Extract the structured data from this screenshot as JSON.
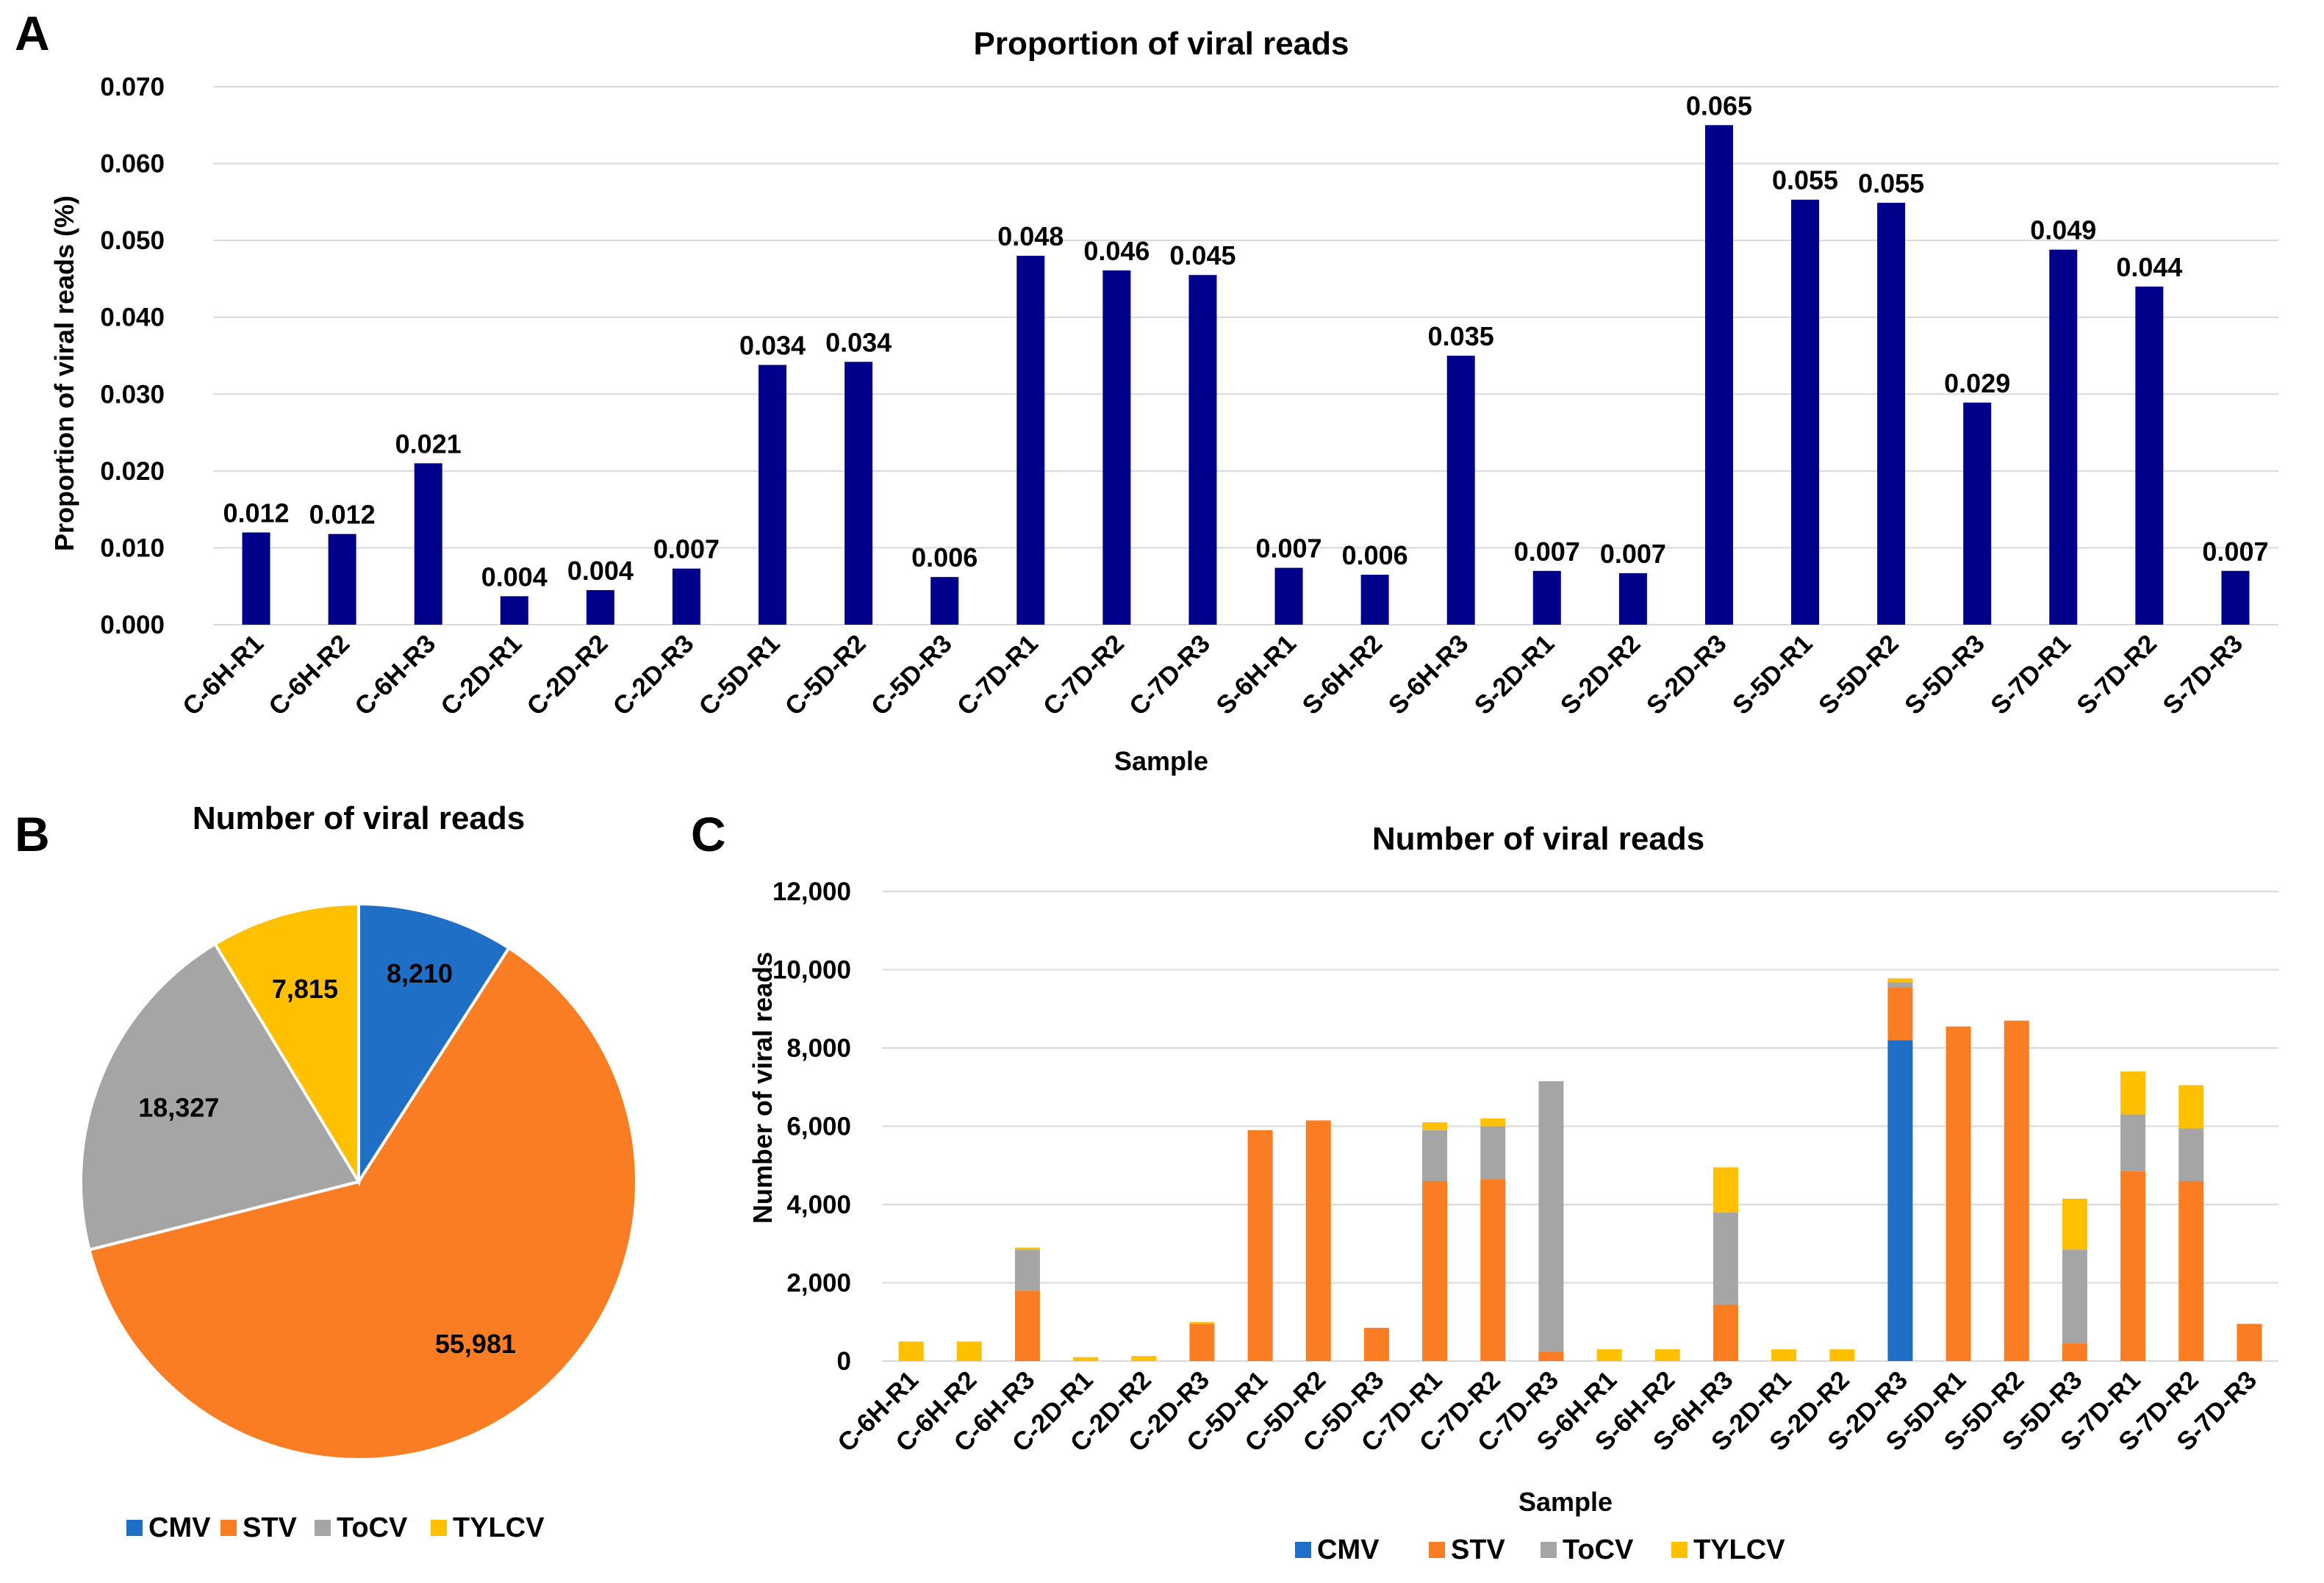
{
  "panel_letters": {
    "a": "A",
    "b": "B",
    "c": "C"
  },
  "colors": {
    "bar_blue": "#00008b",
    "CMV": "#1f6fc6",
    "STV": "#fb7d23",
    "ToCV": "#a5a5a5",
    "TYLCV": "#ffc000"
  },
  "chart_data": [
    {
      "id": "A",
      "type": "bar",
      "title": "Proportion of viral reads",
      "xlabel": "Sample",
      "ylabel": "Proportion of viral reads (%)",
      "ylim": [
        0,
        0.07
      ],
      "yticks": [
        "0.000",
        "0.010",
        "0.020",
        "0.030",
        "0.040",
        "0.050",
        "0.060",
        "0.070"
      ],
      "ytick_values": [
        0,
        0.01,
        0.02,
        0.03,
        0.04,
        0.05,
        0.06,
        0.07
      ],
      "grid": true,
      "categories": [
        "C-6H-R1",
        "C-6H-R2",
        "C-6H-R3",
        "C-2D-R1",
        "C-2D-R2",
        "C-2D-R3",
        "C-5D-R1",
        "C-5D-R2",
        "C-5D-R3",
        "C-7D-R1",
        "C-7D-R2",
        "C-7D-R3",
        "S-6H-R1",
        "S-6H-R2",
        "S-6H-R3",
        "S-2D-R1",
        "S-2D-R2",
        "S-2D-R3",
        "S-5D-R1",
        "S-5D-R2",
        "S-5D-R3",
        "S-7D-R1",
        "S-7D-R2",
        "S-7D-R3"
      ],
      "values": [
        0.012,
        0.0118,
        0.021,
        0.0037,
        0.0045,
        0.0073,
        0.0338,
        0.0342,
        0.0062,
        0.048,
        0.0461,
        0.0455,
        0.0074,
        0.0065,
        0.035,
        0.007,
        0.0067,
        0.065,
        0.0553,
        0.0549,
        0.0289,
        0.0488,
        0.044,
        0.007
      ],
      "labels": [
        "0.012",
        "0.012",
        "0.021",
        "0.004",
        "0.004",
        "0.007",
        "0.034",
        "0.034",
        "0.006",
        "0.048",
        "0.046",
        "0.045",
        "0.007",
        "0.006",
        "0.035",
        "0.007",
        "0.007",
        "0.065",
        "0.055",
        "0.055",
        "0.029",
        "0.049",
        "0.044",
        "0.007"
      ]
    },
    {
      "id": "B",
      "type": "pie",
      "title": "Number of viral reads",
      "legend": "bottom",
      "slices": [
        {
          "name": "CMV",
          "value": 8210,
          "label": "8,210"
        },
        {
          "name": "STV",
          "value": 55981,
          "label": "55,981"
        },
        {
          "name": "ToCV",
          "value": 18327,
          "label": "18,327"
        },
        {
          "name": "TYLCV",
          "value": 7815,
          "label": "7,815"
        }
      ]
    },
    {
      "id": "C",
      "type": "bar",
      "stacked": true,
      "title": "Number of viral reads",
      "xlabel": "Sample",
      "ylabel": "Number of viral reads",
      "ylim": [
        0,
        12000
      ],
      "yticks": [
        "0",
        "2,000",
        "4,000",
        "6,000",
        "8,000",
        "10,000",
        "12,000"
      ],
      "ytick_values": [
        0,
        2000,
        4000,
        6000,
        8000,
        10000,
        12000
      ],
      "grid": true,
      "legend": "bottom",
      "categories": [
        "C-6H-R1",
        "C-6H-R2",
        "C-6H-R3",
        "C-2D-R1",
        "C-2D-R2",
        "C-2D-R3",
        "C-5D-R1",
        "C-5D-R2",
        "C-5D-R3",
        "C-7D-R1",
        "C-7D-R2",
        "C-7D-R3",
        "S-6H-R1",
        "S-6H-R2",
        "S-6H-R3",
        "S-2D-R1",
        "S-2D-R2",
        "S-2D-R3",
        "S-5D-R1",
        "S-5D-R2",
        "S-5D-R3",
        "S-7D-R1",
        "S-7D-R2",
        "S-7D-R3"
      ],
      "series": [
        {
          "name": "CMV",
          "values": [
            0,
            0,
            0,
            0,
            0,
            0,
            0,
            0,
            0,
            0,
            0,
            0,
            0,
            0,
            0,
            0,
            0,
            8200,
            0,
            0,
            0,
            0,
            0,
            0
          ]
        },
        {
          "name": "STV",
          "values": [
            0,
            0,
            1800,
            0,
            0,
            950,
            5900,
            6150,
            850,
            4600,
            4650,
            250,
            0,
            0,
            1450,
            0,
            0,
            1350,
            8550,
            8700,
            450,
            4850,
            4600,
            950
          ]
        },
        {
          "name": "ToCV",
          "values": [
            0,
            0,
            1050,
            0,
            0,
            0,
            0,
            0,
            0,
            1300,
            1350,
            6900,
            0,
            0,
            2350,
            0,
            0,
            130,
            0,
            0,
            2400,
            1450,
            1350,
            0
          ]
        },
        {
          "name": "TYLCV",
          "values": [
            500,
            500,
            50,
            100,
            130,
            50,
            0,
            0,
            0,
            200,
            200,
            0,
            300,
            300,
            1150,
            300,
            300,
            100,
            0,
            0,
            1300,
            1100,
            1100,
            0
          ]
        }
      ]
    }
  ]
}
